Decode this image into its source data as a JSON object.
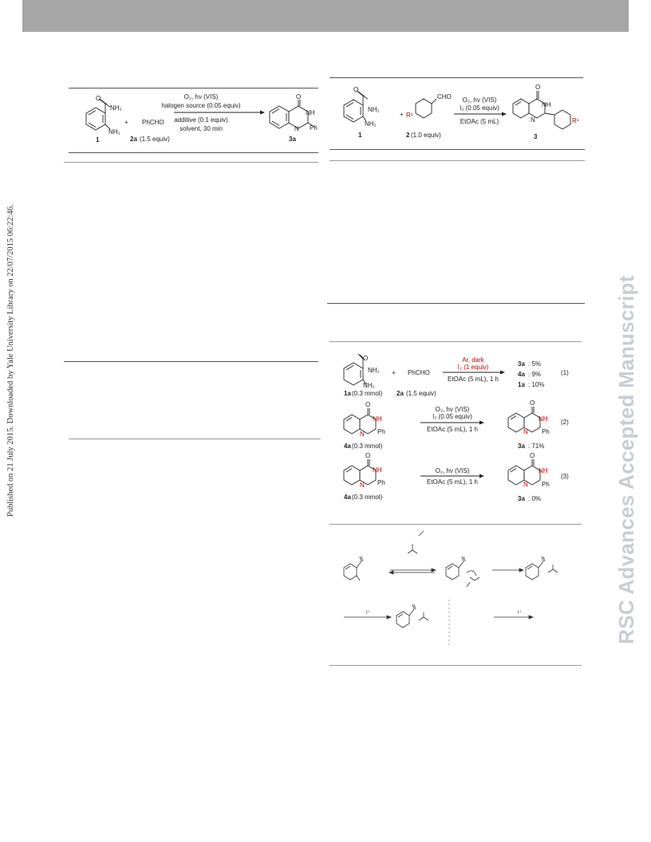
{
  "sidebar_text": "Published on 21 July 2015. Downloaded by Yale University Library on 22/07/2015 06:22:46.",
  "watermark": "RSC Advances Accepted Manuscript",
  "scheme_left": {
    "reactant1": {
      "label": "1",
      "nh2_top": "NH₂",
      "nh2_bottom": "NH₂"
    },
    "plus": "+",
    "reactant2": {
      "text": "PhCHO",
      "label": "2a",
      "equiv": "(1.5 equiv)"
    },
    "conditions_top_1": "O₂, hν (VIS)",
    "conditions_top_2": "halogen source (0.05 equiv)",
    "conditions_bottom_1": "additive (0.1 equiv)",
    "conditions_bottom_2": "solvent, 30 min",
    "product": {
      "label": "3a",
      "nh": "NH",
      "n": "N",
      "ph": "Ph",
      "o": "O"
    }
  },
  "scheme_right": {
    "reactant1": {
      "label": "1",
      "nh2_top": "NH₂",
      "nh2_bottom": "NH₂"
    },
    "plus": "+",
    "reactant2": {
      "text": "CHO",
      "substituent": "R¹",
      "label": "2",
      "equiv": "(1.0 equiv)"
    },
    "conditions_top_1": "O₂, hν (VIS)",
    "conditions_top_2": "I₂ (0.05 equiv)",
    "conditions_bottom": "EtOAc (5 mL)",
    "product": {
      "label": "3",
      "nh": "NH",
      "n": "N",
      "r": "R¹",
      "o": "O"
    }
  },
  "control_experiments": {
    "eq1": {
      "reactant1_label": "1a",
      "reactant1_amount": "(0.3 mmol)",
      "plus": "+",
      "reactant2_text": "PhCHO",
      "reactant2_label": "2a",
      "reactant2_equiv": "(1.5 equiv)",
      "cond_red_1": "Ar, dark",
      "cond_red_2": "I₂ (1 equiv)",
      "cond_bottom": "EtOAc (5 mL), 1 h",
      "results": [
        {
          "label": "3a",
          "value": ": 5%"
        },
        {
          "label": "4a",
          "value": ": 9%"
        },
        {
          "label": "1a",
          "value": ": 10%"
        }
      ],
      "number": "(1)"
    },
    "eq2": {
      "reactant_label": "4a",
      "reactant_amount": "(0.3 mmol)",
      "cond_1": "O₂, hν (VIS)",
      "cond_2": "I₂ (0.05 equiv)",
      "cond_bottom": "EtOAc (5 mL), 1 h",
      "product_label": "3a",
      "product_value": ": 71%",
      "number": "(2)"
    },
    "eq3": {
      "reactant_label": "4a",
      "reactant_amount": "(0.3 mmol)",
      "cond_1": "O₂, hν (VIS)",
      "cond_bottom": "EtOAc (5 mL), 1 h",
      "product_label": "3a",
      "product_value": ": 0%",
      "number": "(3)"
    },
    "atoms": {
      "o": "O",
      "nh": "NH",
      "nh2": "NH₂",
      "n": "N",
      "h": "H",
      "ph": "Ph"
    }
  },
  "mechanism": {
    "arrow_label_1": "I⁺",
    "arrow_label_2": "I⁺"
  }
}
